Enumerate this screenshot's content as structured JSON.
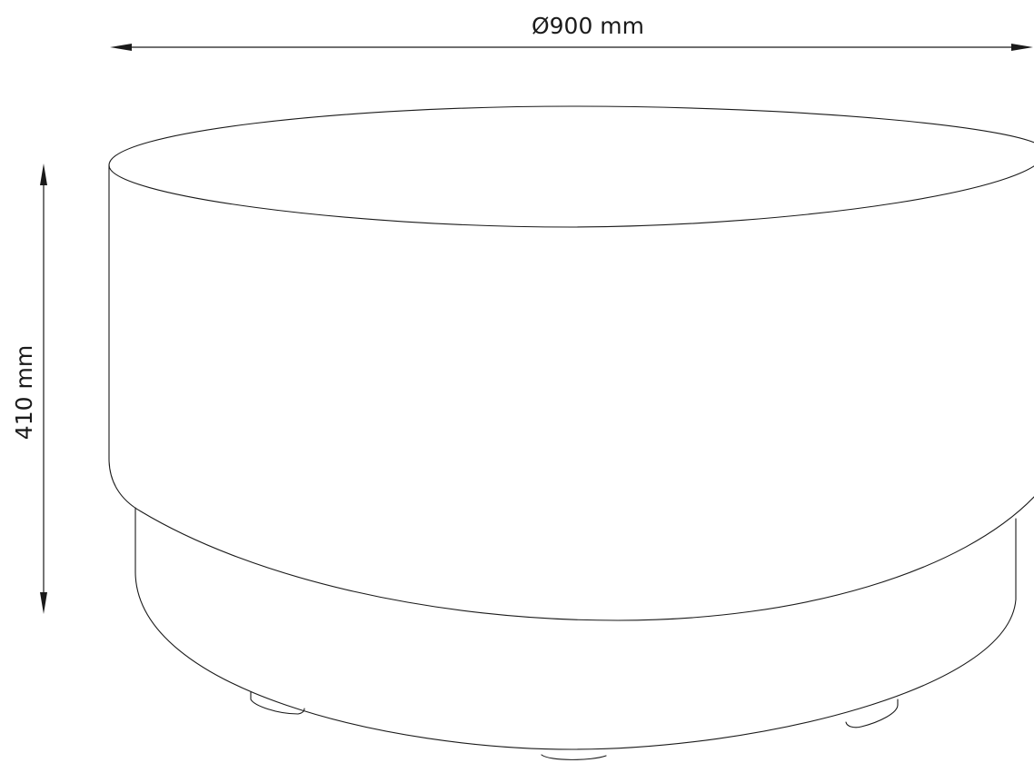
{
  "dimensions": {
    "diameter_label": "Ø900 mm",
    "height_label": "410 mm"
  }
}
